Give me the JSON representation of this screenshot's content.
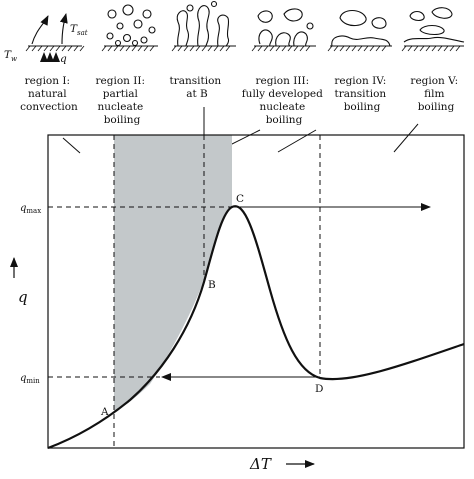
{
  "regions": [
    {
      "lines": [
        "region I:",
        "natural",
        "convection"
      ]
    },
    {
      "lines": [
        "region II:",
        "partial",
        "nucleate",
        "boiling"
      ]
    },
    {
      "lines": [
        "transition",
        "at B"
      ]
    },
    {
      "lines": [
        "region III:",
        "fully developed",
        "nucleate",
        "boiling"
      ]
    },
    {
      "lines": [
        "region IV:",
        "transition",
        "boiling"
      ]
    },
    {
      "lines": [
        "region V:",
        "film",
        "boiling"
      ]
    }
  ],
  "sketch_labels": {
    "tw": "T",
    "tw_sub": "w",
    "tsat": "T",
    "tsat_sub": "sat",
    "q": "q"
  },
  "points": {
    "A": "A",
    "B": "B",
    "C": "C",
    "D": "D"
  },
  "axes": {
    "y_symbol": "q",
    "x_symbol": "ΔT",
    "qmax": "q",
    "qmax_sub": "max",
    "qmin": "q",
    "qmin_sub": "min"
  },
  "colors": {
    "shade": "#c3c8ca",
    "line": "#111111"
  }
}
